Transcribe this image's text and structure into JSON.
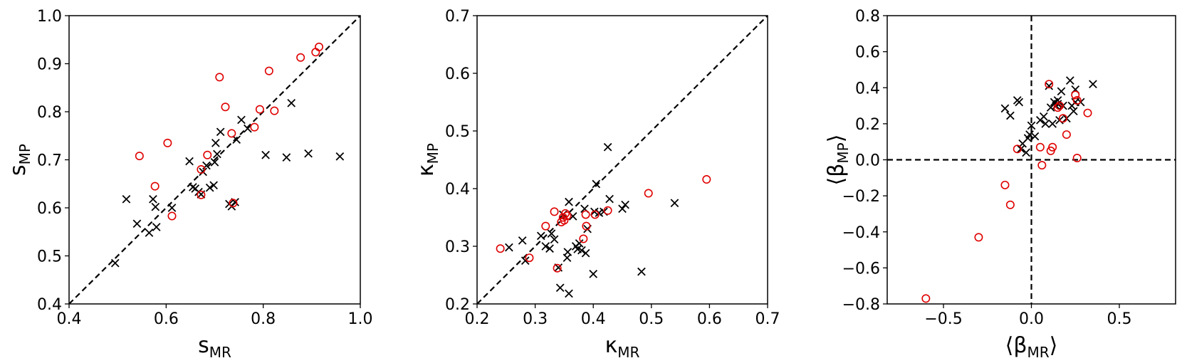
{
  "chart_data": [
    {
      "type": "scatter",
      "xlabel": {
        "main": "s",
        "sub": "MR"
      },
      "ylabel": {
        "main": "s",
        "sub": "MP"
      },
      "xlim": [
        0.4,
        1.0
      ],
      "ylim": [
        0.4,
        1.0
      ],
      "xticks": [
        "0.4",
        "0.6",
        "0.8",
        "1.0"
      ],
      "yticks": [
        "0.4",
        "0.5",
        "0.6",
        "0.7",
        "0.8",
        "0.9",
        "1.0"
      ],
      "reference_lines": [
        "y=x"
      ],
      "series": [
        {
          "marker": "x",
          "color": "#000000",
          "points": [
            [
              0.495,
              0.485
            ],
            [
              0.518,
              0.618
            ],
            [
              0.54,
              0.567
            ],
            [
              0.565,
              0.548
            ],
            [
              0.573,
              0.618
            ],
            [
              0.578,
              0.602
            ],
            [
              0.58,
              0.56
            ],
            [
              0.612,
              0.6
            ],
            [
              0.648,
              0.697
            ],
            [
              0.655,
              0.643
            ],
            [
              0.66,
              0.64
            ],
            [
              0.667,
              0.633
            ],
            [
              0.672,
              0.628
            ],
            [
              0.676,
              0.675
            ],
            [
              0.683,
              0.688
            ],
            [
              0.69,
              0.642
            ],
            [
              0.698,
              0.647
            ],
            [
              0.7,
              0.695
            ],
            [
              0.702,
              0.735
            ],
            [
              0.705,
              0.712
            ],
            [
              0.712,
              0.758
            ],
            [
              0.73,
              0.608
            ],
            [
              0.735,
              0.603
            ],
            [
              0.742,
              0.612
            ],
            [
              0.745,
              0.742
            ],
            [
              0.755,
              0.783
            ],
            [
              0.768,
              0.765
            ],
            [
              0.805,
              0.71
            ],
            [
              0.848,
              0.705
            ],
            [
              0.858,
              0.818
            ],
            [
              0.893,
              0.713
            ],
            [
              0.958,
              0.707
            ]
          ]
        },
        {
          "marker": "o",
          "color": "#e00000",
          "points": [
            [
              0.545,
              0.708
            ],
            [
              0.577,
              0.645
            ],
            [
              0.603,
              0.735
            ],
            [
              0.612,
              0.583
            ],
            [
              0.672,
              0.68
            ],
            [
              0.672,
              0.627
            ],
            [
              0.685,
              0.71
            ],
            [
              0.71,
              0.872
            ],
            [
              0.722,
              0.81
            ],
            [
              0.735,
              0.755
            ],
            [
              0.738,
              0.61
            ],
            [
              0.782,
              0.768
            ],
            [
              0.793,
              0.805
            ],
            [
              0.812,
              0.885
            ],
            [
              0.823,
              0.802
            ],
            [
              0.877,
              0.913
            ],
            [
              0.908,
              0.924
            ],
            [
              0.915,
              0.935
            ]
          ]
        }
      ]
    },
    {
      "type": "scatter",
      "xlabel": {
        "main": "κ",
        "sub": "MR"
      },
      "ylabel": {
        "main": "κ",
        "sub": "MP"
      },
      "xlim": [
        0.2,
        0.7
      ],
      "ylim": [
        0.2,
        0.7
      ],
      "xticks": [
        "0.2",
        "0.3",
        "0.4",
        "0.5",
        "0.6",
        "0.7"
      ],
      "yticks": [
        "0.2",
        "0.3",
        "0.4",
        "0.5",
        "0.6",
        "0.7"
      ],
      "reference_lines": [
        "y=x"
      ],
      "series": [
        {
          "marker": "x",
          "color": "#000000",
          "points": [
            [
              0.255,
              0.298
            ],
            [
              0.278,
              0.31
            ],
            [
              0.283,
              0.275
            ],
            [
              0.31,
              0.318
            ],
            [
              0.318,
              0.3
            ],
            [
              0.325,
              0.296
            ],
            [
              0.328,
              0.322
            ],
            [
              0.333,
              0.312
            ],
            [
              0.34,
              0.263
            ],
            [
              0.343,
              0.228
            ],
            [
              0.348,
              0.355
            ],
            [
              0.355,
              0.28
            ],
            [
              0.356,
              0.29
            ],
            [
              0.358,
              0.218
            ],
            [
              0.358,
              0.377
            ],
            [
              0.365,
              0.352
            ],
            [
              0.37,
              0.3
            ],
            [
              0.373,
              0.295
            ],
            [
              0.376,
              0.305
            ],
            [
              0.38,
              0.293
            ],
            [
              0.385,
              0.365
            ],
            [
              0.387,
              0.288
            ],
            [
              0.39,
              0.33
            ],
            [
              0.4,
              0.252
            ],
            [
              0.402,
              0.36
            ],
            [
              0.405,
              0.408
            ],
            [
              0.41,
              0.358
            ],
            [
              0.418,
              0.36
            ],
            [
              0.425,
              0.472
            ],
            [
              0.428,
              0.382
            ],
            [
              0.45,
              0.365
            ],
            [
              0.455,
              0.372
            ],
            [
              0.483,
              0.256
            ],
            [
              0.54,
              0.375
            ]
          ]
        },
        {
          "marker": "o",
          "color": "#e00000",
          "points": [
            [
              0.24,
              0.296
            ],
            [
              0.29,
              0.28
            ],
            [
              0.318,
              0.335
            ],
            [
              0.333,
              0.36
            ],
            [
              0.338,
              0.262
            ],
            [
              0.345,
              0.342
            ],
            [
              0.348,
              0.35
            ],
            [
              0.35,
              0.345
            ],
            [
              0.352,
              0.357
            ],
            [
              0.355,
              0.353
            ],
            [
              0.383,
              0.313
            ],
            [
              0.387,
              0.355
            ],
            [
              0.388,
              0.335
            ],
            [
              0.403,
              0.355
            ],
            [
              0.425,
              0.362
            ],
            [
              0.495,
              0.392
            ],
            [
              0.595,
              0.416
            ]
          ]
        }
      ]
    },
    {
      "type": "scatter",
      "xlabel": {
        "main": "⟨β",
        "sub": "MR",
        "close": "⟩"
      },
      "ylabel": {
        "main": "⟨β",
        "sub": "MP",
        "close": "⟩"
      },
      "xlim": [
        -0.82,
        0.82
      ],
      "ylim": [
        -0.8,
        0.8
      ],
      "xticks": [
        "−0.5",
        "0.0",
        "0.5"
      ],
      "yticks": [
        "−0.8",
        "−0.6",
        "−0.4",
        "−0.2",
        "0.0",
        "0.2",
        "0.4",
        "0.6",
        "0.8"
      ],
      "reference_lines": [
        "x=0",
        "y=0"
      ],
      "series": [
        {
          "marker": "x",
          "color": "#000000",
          "points": [
            [
              -0.15,
              0.285
            ],
            [
              -0.12,
              0.245
            ],
            [
              -0.08,
              0.33
            ],
            [
              -0.07,
              0.32
            ],
            [
              -0.06,
              0.06
            ],
            [
              -0.05,
              0.09
            ],
            [
              -0.03,
              0.04
            ],
            [
              -0.02,
              0.12
            ],
            [
              -0.01,
              0.14
            ],
            [
              0.0,
              0.19
            ],
            [
              0.02,
              0.13
            ],
            [
              0.05,
              0.22
            ],
            [
              0.07,
              0.24
            ],
            [
              0.08,
              0.2
            ],
            [
              0.1,
              0.41
            ],
            [
              0.11,
              0.29
            ],
            [
              0.12,
              0.2
            ],
            [
              0.13,
              0.32
            ],
            [
              0.14,
              0.3
            ],
            [
              0.15,
              0.31
            ],
            [
              0.15,
              0.33
            ],
            [
              0.16,
              0.22
            ],
            [
              0.17,
              0.38
            ],
            [
              0.18,
              0.3
            ],
            [
              0.2,
              0.23
            ],
            [
              0.22,
              0.44
            ],
            [
              0.23,
              0.3
            ],
            [
              0.24,
              0.27
            ],
            [
              0.25,
              0.39
            ],
            [
              0.25,
              0.32
            ],
            [
              0.28,
              0.32
            ],
            [
              0.35,
              0.42
            ]
          ]
        },
        {
          "marker": "o",
          "color": "#e00000",
          "points": [
            [
              -0.6,
              -0.77
            ],
            [
              -0.3,
              -0.43
            ],
            [
              -0.15,
              -0.14
            ],
            [
              -0.12,
              -0.25
            ],
            [
              -0.08,
              0.06
            ],
            [
              0.05,
              0.07
            ],
            [
              0.06,
              -0.03
            ],
            [
              0.1,
              0.42
            ],
            [
              0.11,
              0.05
            ],
            [
              0.12,
              0.07
            ],
            [
              0.15,
              0.29
            ],
            [
              0.16,
              0.3
            ],
            [
              0.18,
              0.23
            ],
            [
              0.2,
              0.14
            ],
            [
              0.25,
              0.36
            ],
            [
              0.26,
              0.01
            ],
            [
              0.26,
              0.33
            ],
            [
              0.32,
              0.26
            ]
          ]
        }
      ]
    }
  ]
}
